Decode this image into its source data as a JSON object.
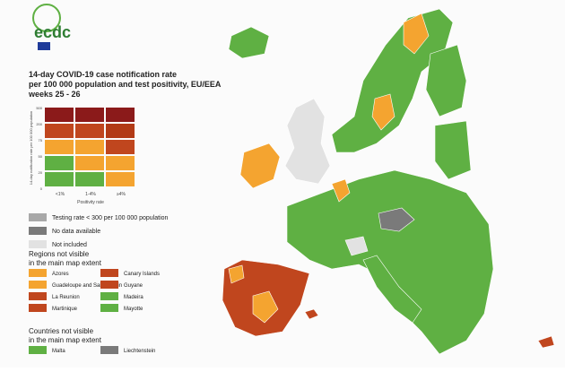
{
  "logo": {
    "text": "ecdc"
  },
  "title": {
    "lines": [
      "14-day COVID-19 case notification rate",
      "per 100 000 population and test positivity, EU/EEA",
      "weeks 25 - 26"
    ]
  },
  "matrix": {
    "y_label": "14-day notification rate per 100 000 population",
    "y_ticks": [
      "500",
      "200",
      "75",
      "50",
      "20",
      "0"
    ],
    "x_label": "Positivity rate",
    "x_ticks": [
      "<1%",
      "1-4%",
      "≥4%"
    ],
    "rows": [
      [
        "#8b1a1a",
        "#8b1a1a",
        "#8b1a1a"
      ],
      [
        "#c0461e",
        "#c0461e",
        "#b23a16"
      ],
      [
        "#f4a430",
        "#f4a430",
        "#c0461e"
      ],
      [
        "#5fb043",
        "#f4a430",
        "#f4a430"
      ],
      [
        "#5fb043",
        "#5fb043",
        "#f4a430"
      ]
    ]
  },
  "legend": [
    {
      "label": "Testing rate < 300 per 100 000 population",
      "color": "#a8a8a8"
    },
    {
      "label": "No data available",
      "color": "#7a7a7a"
    },
    {
      "label": "Not included",
      "color": "#e2e2e2"
    }
  ],
  "regions": {
    "heading": [
      "Regions not visible",
      "in the main map extent"
    ],
    "items": [
      {
        "label": "Azores",
        "color": "#f4a430"
      },
      {
        "label": "Guadeloupe and Saint Martin",
        "color": "#f4a430"
      },
      {
        "label": "La Reunion",
        "color": "#c0461e"
      },
      {
        "label": "Martinique",
        "color": "#c0461e"
      },
      {
        "label": "Canary Islands",
        "color": "#c0461e"
      },
      {
        "label": "Guyane",
        "color": "#c0461e"
      },
      {
        "label": "Madeira",
        "color": "#5fb043"
      },
      {
        "label": "Mayotte",
        "color": "#5fb043"
      }
    ]
  },
  "countries": {
    "heading": [
      "Countries not visible",
      "in the main map extent"
    ],
    "items": [
      {
        "label": "Malta",
        "color": "#5fb043"
      },
      {
        "label": "Liechtenstein",
        "color": "#7a7a7a"
      }
    ]
  }
}
